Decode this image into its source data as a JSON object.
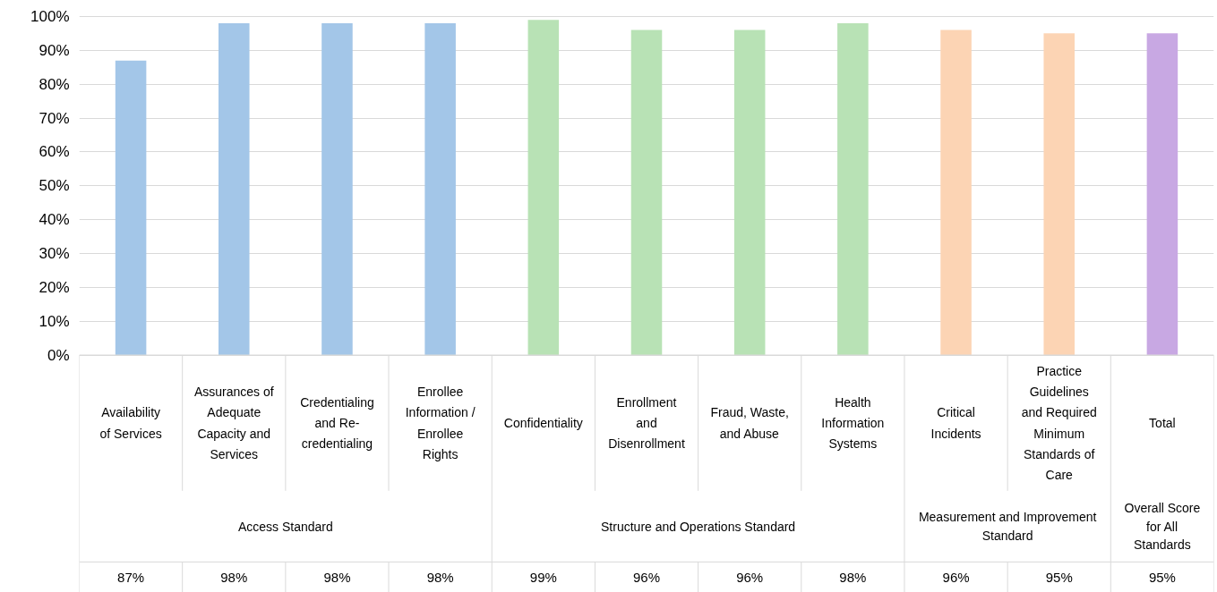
{
  "chart_data": {
    "type": "bar",
    "categories": [
      "Availability of Services",
      "Assurances of Adequate Capacity and Services",
      "Credentialing and Re-credentialing",
      "Enrollee Information / Enrollee Rights",
      "Confidentiality",
      "Enrollment and Disenrollment",
      "Fraud, Waste, and Abuse",
      "Health Information Systems",
      "Critical Incidents",
      "Practice Guidelines and Required Minimum Standards of Care",
      "Total"
    ],
    "values": [
      87,
      98,
      98,
      98,
      99,
      96,
      96,
      98,
      96,
      95,
      95
    ],
    "colors": [
      "#a3c6e8",
      "#a3c6e8",
      "#a3c6e8",
      "#a3c6e8",
      "#b8e2b5",
      "#b8e2b5",
      "#b8e2b5",
      "#b8e2b5",
      "#fcd4b4",
      "#fcd4b4",
      "#c8a8e3"
    ],
    "annotations": [
      "Access Standard",
      "Structure and Operations Standard",
      "Measurement and Improvement Standard",
      "Overall Score for All Standards"
    ],
    "ylim": [
      0,
      100
    ],
    "yticks": [
      {
        "value": 0,
        "label": "0%"
      },
      {
        "value": 10,
        "label": "10%"
      },
      {
        "value": 20,
        "label": "20%"
      },
      {
        "value": 30,
        "label": "30%"
      },
      {
        "value": 40,
        "label": "40%"
      },
      {
        "value": 50,
        "label": "50%"
      },
      {
        "value": 60,
        "label": "60%"
      },
      {
        "value": 70,
        "label": "70%"
      },
      {
        "value": 80,
        "label": "80%"
      },
      {
        "value": 90,
        "label": "90%"
      },
      {
        "value": 100,
        "label": "100%"
      }
    ],
    "grid": "y",
    "value_labels": [
      "87%",
      "98%",
      "98%",
      "98%",
      "99%",
      "96%",
      "96%",
      "98%",
      "96%",
      "95%",
      "95%"
    ]
  }
}
